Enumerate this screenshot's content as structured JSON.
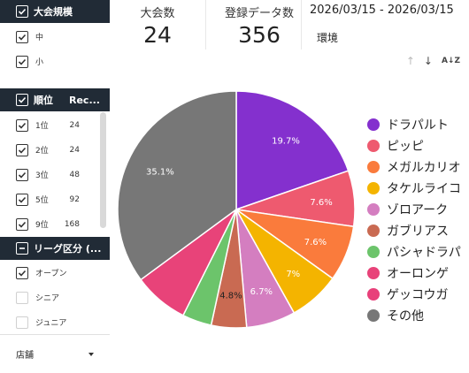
{
  "sidebar": {
    "scale_header": "大会規模",
    "scale_items": [
      {
        "label": "中"
      },
      {
        "label": "小"
      }
    ],
    "rank_header": "順位",
    "rank_col2": "Rec...",
    "rank_items": [
      {
        "label": "1位",
        "count": "24"
      },
      {
        "label": "2位",
        "count": "24"
      },
      {
        "label": "3位",
        "count": "48"
      },
      {
        "label": "5位",
        "count": "92"
      },
      {
        "label": "9位",
        "count": "168"
      }
    ],
    "league_header": "リーグ区分 (...",
    "league_items": [
      {
        "label": "オープン",
        "checked": true
      },
      {
        "label": "シニア",
        "checked": false
      },
      {
        "label": "ジュニア",
        "checked": false
      }
    ],
    "store_label": "店舗"
  },
  "cards": {
    "tournaments_label": "大会数",
    "tournaments_value": "24",
    "records_label": "登録データ数",
    "records_value": "356"
  },
  "date_range": "2026/03/15 - 2026/03/15",
  "env_label": "環境",
  "sort_icons": [
    "arrow-up-icon",
    "arrow-down-icon",
    "sort-az-icon"
  ],
  "chart_data": {
    "type": "pie",
    "slices": [
      {
        "name": "ドラパルト",
        "value": 19.7,
        "label": "19.7%",
        "color": "#8430ce"
      },
      {
        "name": "ピッピ",
        "value": 7.6,
        "label": "7.6%",
        "color": "#ee5a6f"
      },
      {
        "name": "メガルカリオ",
        "value": 7.6,
        "label": "7.6%",
        "color": "#fa7b3c"
      },
      {
        "name": "タケルライコ",
        "value": 7.0,
        "label": "7%",
        "color": "#f4b400"
      },
      {
        "name": "ゾロアーク",
        "value": 6.7,
        "label": "6.7%",
        "color": "#d47ec0"
      },
      {
        "name": "ガブリアス",
        "value": 4.8,
        "label": "4.8%",
        "color": "#c96a52"
      },
      {
        "name": "パシャドラパ",
        "value": 4.0,
        "label": "",
        "color": "#6cc46b"
      },
      {
        "name": "オーロンゲ",
        "value": 7.5,
        "label": "",
        "color": "#e84379"
      },
      {
        "name": "ゲッコウガ",
        "value": 0.0,
        "label": "",
        "color": "#e8407a"
      },
      {
        "name": "その他",
        "value": 35.1,
        "label": "35.1%",
        "color": "#777777"
      }
    ],
    "legend_position": "right"
  }
}
